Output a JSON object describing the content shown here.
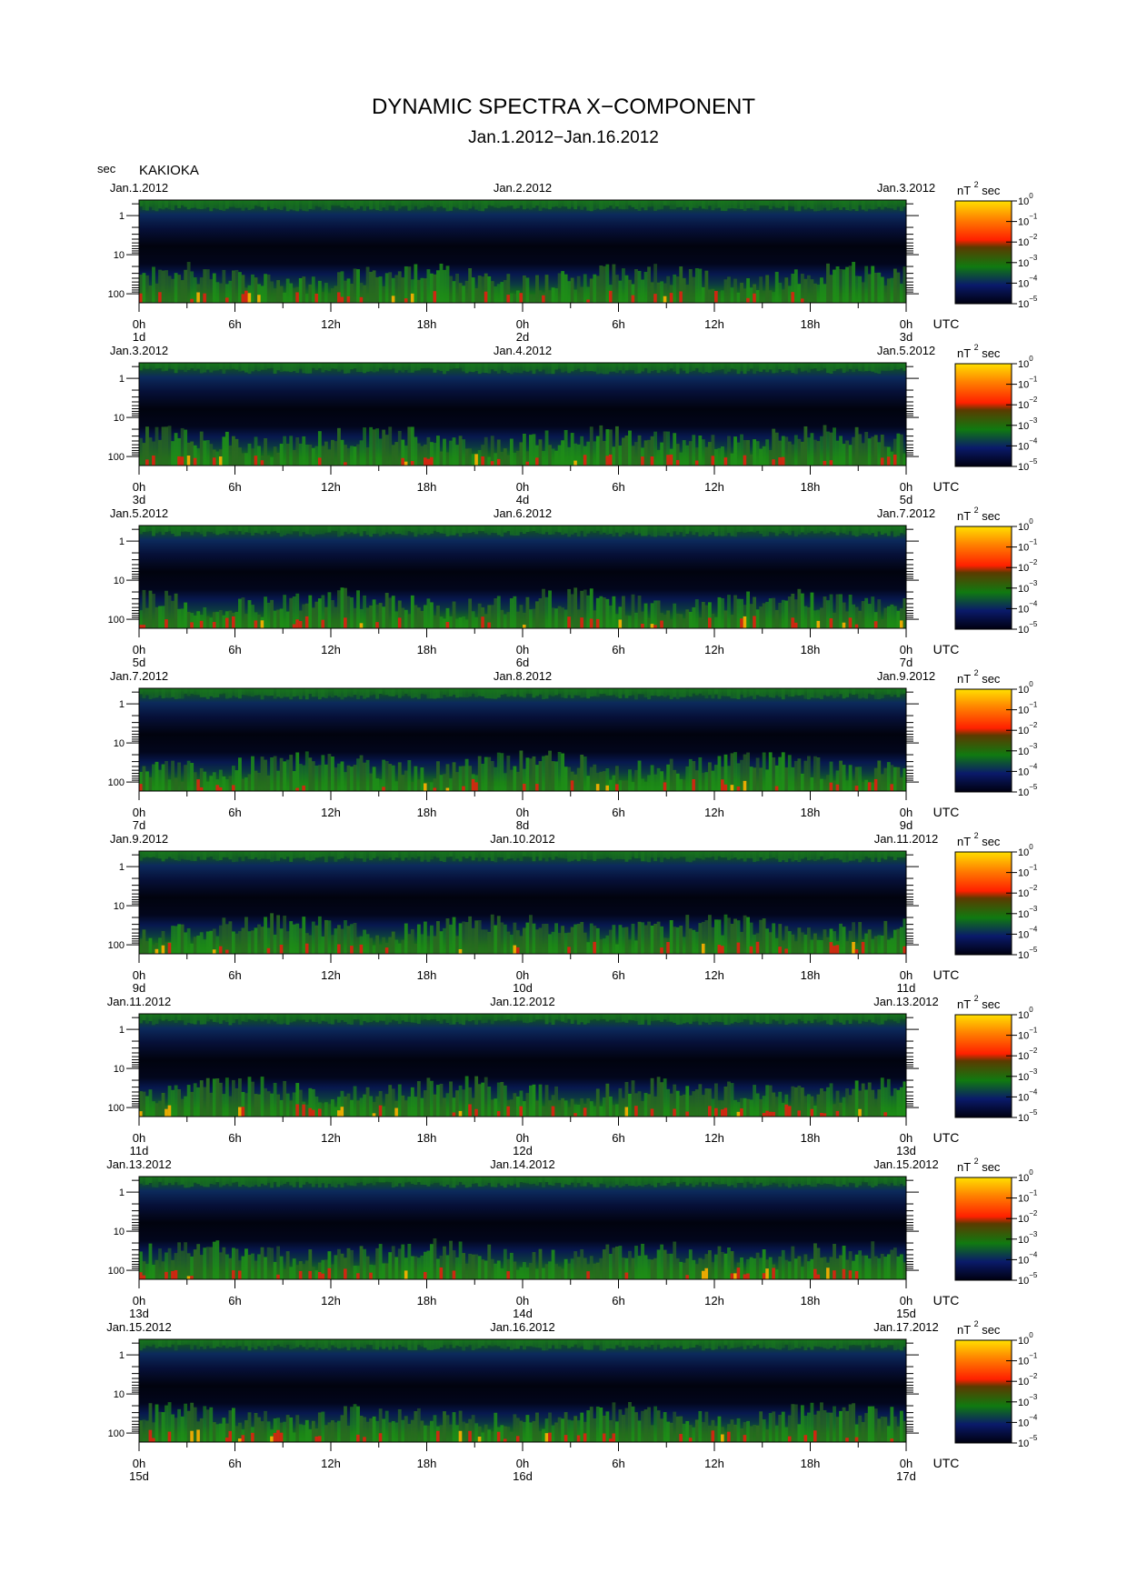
{
  "title": "DYNAMIC SPECTRA X−COMPONENT",
  "subtitle": "Jan.1.2012−Jan.16.2012",
  "unit_label": "sec",
  "station": "KAKIOKA",
  "chart_data": {
    "type": "heatmap",
    "title": "DYNAMIC SPECTRA X−COMPONENT",
    "subtitle": "Jan.1.2012−Jan.16.2012",
    "station": "KAKIOKA",
    "ylabel": "sec",
    "y_ticks": [
      "1",
      "10",
      "100"
    ],
    "y_scale": "log",
    "y_direction": "increasing downward",
    "x_ticks": [
      "0h",
      "6h",
      "12h",
      "18h",
      "0h",
      "6h",
      "12h",
      "18h",
      "0h"
    ],
    "x_unit_label": "UTC",
    "colorbar": {
      "label": "nT",
      "label_superscript": "2",
      "label_suffix": "sec",
      "ticks": [
        "10^0",
        "10^−1",
        "10^−2",
        "10^−3",
        "10^−4",
        "10^−5"
      ],
      "scale": "log",
      "range": [
        1e-05,
        1
      ],
      "colors": [
        "#000010",
        "#0a1a6a",
        "#107a10",
        "#ff2000",
        "#ffe000"
      ]
    },
    "panels": [
      {
        "date_left": "Jan.1.2012",
        "date_mid": "Jan.2.2012",
        "date_right": "Jan.3.2012",
        "day_labels": [
          "1d",
          "2d",
          "3d"
        ]
      },
      {
        "date_left": "Jan.3.2012",
        "date_mid": "Jan.4.2012",
        "date_right": "Jan.5.2012",
        "day_labels": [
          "3d",
          "4d",
          "5d"
        ]
      },
      {
        "date_left": "Jan.5.2012",
        "date_mid": "Jan.6.2012",
        "date_right": "Jan.7.2012",
        "day_labels": [
          "5d",
          "6d",
          "7d"
        ]
      },
      {
        "date_left": "Jan.7.2012",
        "date_mid": "Jan.8.2012",
        "date_right": "Jan.9.2012",
        "day_labels": [
          "7d",
          "8d",
          "9d"
        ]
      },
      {
        "date_left": "Jan.9.2012",
        "date_mid": "Jan.10.2012",
        "date_right": "Jan.11.2012",
        "day_labels": [
          "9d",
          "10d",
          "11d"
        ]
      },
      {
        "date_left": "Jan.11.2012",
        "date_mid": "Jan.12.2012",
        "date_right": "Jan.13.2012",
        "day_labels": [
          "11d",
          "12d",
          "13d"
        ]
      },
      {
        "date_left": "Jan.13.2012",
        "date_mid": "Jan.14.2012",
        "date_right": "Jan.15.2012",
        "day_labels": [
          "13d",
          "14d",
          "15d"
        ]
      },
      {
        "date_left": "Jan.15.2012",
        "date_mid": "Jan.16.2012",
        "date_right": "Jan.17.2012",
        "day_labels": [
          "15d",
          "16d",
          "17d"
        ]
      }
    ]
  }
}
